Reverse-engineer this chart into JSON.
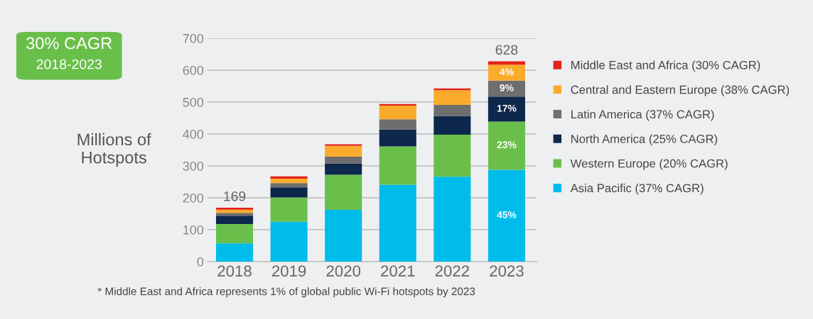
{
  "chart_data": {
    "type": "bar",
    "stacked": true,
    "title": "30% CAGR",
    "subtitle": "2018-2023",
    "ylabel": "Millions of\nHotspots",
    "categories": [
      "2018",
      "2019",
      "2020",
      "2021",
      "2022",
      "2023"
    ],
    "series": [
      {
        "name": "Asia Pacific (37% CAGR)",
        "color": "#00bceb",
        "values": [
          57,
          125,
          162,
          241,
          266,
          288
        ]
      },
      {
        "name": "Western Europe (20% CAGR)",
        "color": "#6abf4b",
        "values": [
          61,
          76,
          110,
          120,
          132,
          151
        ]
      },
      {
        "name": "North America (25% CAGR)",
        "color": "#0d274d",
        "values": [
          26,
          32,
          36,
          53,
          58,
          78
        ]
      },
      {
        "name": "Latin America (37% CAGR)",
        "color": "#6e6e6e",
        "values": [
          9,
          13,
          21,
          32,
          35,
          50
        ]
      },
      {
        "name": "Central and Eastern Europe (38% CAGR)",
        "color": "#fbab2c",
        "values": [
          10,
          14,
          34,
          43,
          46,
          50
        ]
      },
      {
        "name": "Middle East and Africa (30% CAGR)",
        "color": "#e2231a",
        "values": [
          6,
          7,
          5,
          5,
          6,
          11
        ]
      }
    ],
    "totals": [
      "169",
      null,
      null,
      null,
      null,
      "628"
    ],
    "ylim": [
      0,
      700
    ],
    "yticks": [
      0,
      100,
      200,
      300,
      400,
      500,
      600,
      700
    ],
    "grid": "y",
    "legend": "right",
    "annotations": [
      "45%",
      "23%",
      "17%",
      "9%",
      "4%",
      "* Middle East and Africa represents 1% of global public Wi-Fi hotspots by 2023"
    ]
  }
}
